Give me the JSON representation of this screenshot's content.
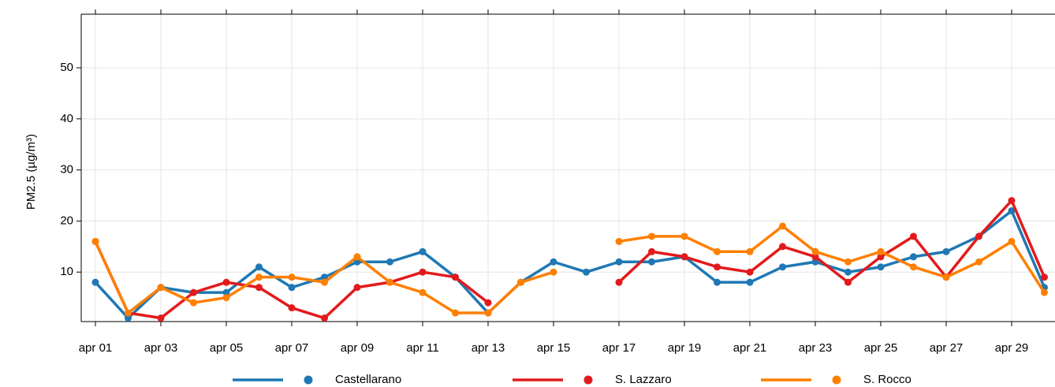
{
  "chart_data": {
    "type": "line",
    "y_label": "PM2.5 (µg/m³)",
    "categories": [
      "apr 01",
      null,
      "apr 03",
      null,
      "apr 05",
      null,
      "apr 07",
      null,
      "apr 09",
      null,
      "apr 11",
      null,
      "apr 13",
      null,
      "apr 15",
      null,
      "apr 17",
      null,
      "apr 19",
      null,
      "apr 21",
      null,
      "apr 23",
      null,
      "apr 25",
      null,
      "apr 27",
      null,
      "apr 29",
      null
    ],
    "series": [
      {
        "name": "Castellarano",
        "color": "#1f78b4",
        "values": [
          8,
          1,
          7,
          6,
          6,
          11,
          7,
          9,
          12,
          12,
          14,
          9,
          2,
          8,
          12,
          10,
          12,
          12,
          13,
          8,
          8,
          11,
          12,
          10,
          11,
          13,
          14,
          17,
          22,
          7
        ]
      },
      {
        "name": "S. Lazzaro",
        "color": "#e31a1c",
        "values": [
          16,
          2,
          1,
          6,
          8,
          7,
          3,
          1,
          7,
          8,
          10,
          9,
          4,
          null,
          null,
          null,
          8,
          14,
          13,
          11,
          10,
          15,
          13,
          8,
          13,
          17,
          9,
          17,
          24,
          9
        ]
      },
      {
        "name": "S. Rocco",
        "color": "#ff7f00",
        "values": [
          16,
          2,
          7,
          4,
          5,
          9,
          9,
          8,
          13,
          8,
          6,
          2,
          2,
          8,
          10,
          null,
          16,
          17,
          17,
          14,
          14,
          19,
          14,
          12,
          14,
          11,
          9,
          12,
          16,
          6
        ]
      }
    ],
    "ylim": [
      0,
      60.5
    ],
    "yticks": [
      10,
      20,
      30,
      40,
      50
    ],
    "grid": true,
    "legend": "bottom"
  }
}
